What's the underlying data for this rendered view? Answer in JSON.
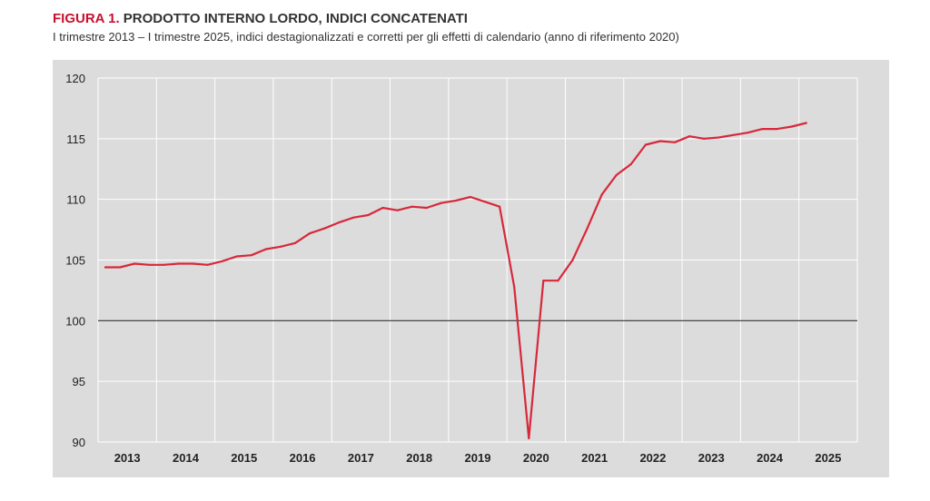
{
  "title": {
    "label": "FIGURA 1.",
    "text": "PRODOTTO INTERNO LORDO, INDICI CONCATENATI"
  },
  "subtitle": "I trimestre 2013 – I trimestre 2025, indici destagionalizzati e corretti per gli effetti di calendario (anno di riferimento 2020)",
  "colors": {
    "accent": "#c8102e",
    "series": "#d7283a",
    "panel": "#dcdcdc",
    "grid": "#ffffff",
    "baseline": "#333333"
  },
  "chart_data": {
    "type": "line",
    "ylim": [
      90,
      120
    ],
    "yticks": [
      90,
      95,
      100,
      105,
      110,
      115,
      120
    ],
    "ytick_labels": [
      "90",
      "95",
      "100",
      "105",
      "110",
      "115",
      "120"
    ],
    "xlim": [
      2013,
      2026
    ],
    "xtick_labels": [
      "2013",
      "2014",
      "2015",
      "2016",
      "2017",
      "2018",
      "2019",
      "2020",
      "2021",
      "2022",
      "2023",
      "2024",
      "2025"
    ],
    "reference_line": 100,
    "grid": true,
    "series": [
      {
        "x": [
          "2013 T1",
          "2013 T2",
          "2013 T3",
          "2013 T4",
          "2014 T1",
          "2014 T2",
          "2014 T3",
          "2014 T4",
          "2015 T1",
          "2015 T2",
          "2015 T3",
          "2015 T4",
          "2016 T1",
          "2016 T2",
          "2016 T3",
          "2016 T4",
          "2017 T1",
          "2017 T2",
          "2017 T3",
          "2017 T4",
          "2018 T1",
          "2018 T2",
          "2018 T3",
          "2018 T4",
          "2019 T1",
          "2019 T2",
          "2019 T3",
          "2019 T4",
          "2020 T1",
          "2020 T2",
          "2020 T3",
          "2020 T4",
          "2021 T1",
          "2021 T2",
          "2021 T3",
          "2021 T4",
          "2022 T1",
          "2022 T2",
          "2022 T3",
          "2022 T4",
          "2023 T1",
          "2023 T2",
          "2023 T3",
          "2023 T4",
          "2024 T1",
          "2024 T2",
          "2024 T3",
          "2024 T4",
          "2025 T1"
        ],
        "values": [
          104.4,
          104.4,
          104.7,
          104.6,
          104.6,
          104.7,
          104.7,
          104.6,
          104.9,
          105.3,
          105.4,
          105.9,
          106.1,
          106.4,
          107.2,
          107.6,
          108.1,
          108.5,
          108.7,
          109.3,
          109.1,
          109.4,
          109.3,
          109.7,
          109.9,
          110.2,
          109.8,
          109.4,
          102.8,
          90.3,
          103.3,
          103.3,
          105.0,
          107.6,
          110.4,
          112.0,
          112.9,
          114.5,
          114.8,
          114.7,
          115.2,
          115.0,
          115.1,
          115.3,
          115.5,
          115.8,
          115.8,
          116.0,
          116.3
        ]
      }
    ]
  }
}
